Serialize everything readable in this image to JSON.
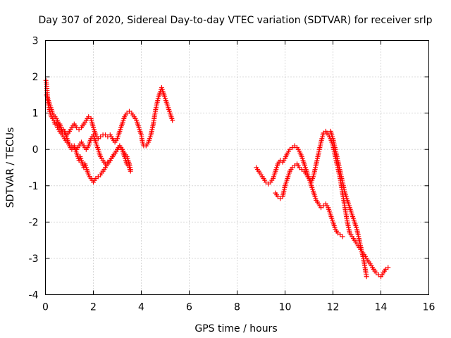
{
  "chart_data": {
    "type": "scatter",
    "title": "Day 307 of 2020, Sidereal Day-to-day VTEC variation (SDTVAR) for receiver srlp",
    "xlabel": "GPS time / hours",
    "ylabel": "SDTVAR / TECUs",
    "xlim": [
      0,
      16
    ],
    "ylim": [
      -4,
      3
    ],
    "xticks": [
      "0",
      "2",
      "4",
      "6",
      "8",
      "10",
      "12",
      "14",
      "16"
    ],
    "yticks": [
      "-4",
      "-3",
      "-2",
      "-1",
      "0",
      "1",
      "2",
      "3"
    ],
    "grid": true,
    "marker": "plus",
    "color": "#ff0000",
    "series": [
      {
        "x": [
          0.02,
          0.05,
          0.08,
          0.1,
          0.13,
          0.16,
          0.2,
          0.25,
          0.3,
          0.35,
          0.4,
          0.45,
          0.5,
          0.55,
          0.6,
          0.65,
          0.7,
          0.75,
          0.8,
          0.85,
          0.9,
          0.95,
          1.0,
          1.05,
          1.1,
          1.15,
          1.2,
          1.25,
          1.3,
          1.35,
          1.4,
          1.45,
          1.5,
          1.55,
          1.6,
          1.65,
          1.7,
          1.75,
          1.8,
          1.85,
          1.9,
          1.95,
          2.0,
          2.05,
          2.1,
          2.2,
          2.3,
          2.4,
          2.5,
          2.6,
          2.7,
          2.8,
          2.9,
          3.0,
          3.1,
          3.2,
          3.3,
          3.4,
          3.5,
          3.55
        ],
        "y": [
          1.9,
          1.8,
          1.5,
          1.3,
          1.2,
          1.1,
          1.0,
          0.9,
          0.85,
          0.8,
          0.7,
          0.75,
          0.65,
          0.6,
          0.7,
          0.6,
          0.5,
          0.55,
          0.5,
          0.4,
          0.3,
          0.2,
          0.1,
          0.05,
          0.0,
          0.05,
          0.1,
          0.0,
          -0.1,
          -0.2,
          -0.3,
          -0.2,
          -0.3,
          -0.4,
          -0.5,
          -0.4,
          -0.5,
          -0.6,
          -0.7,
          -0.75,
          -0.8,
          -0.85,
          -0.9,
          -0.85,
          -0.8,
          -0.75,
          -0.7,
          -0.6,
          -0.5,
          -0.4,
          -0.3,
          -0.2,
          -0.1,
          0.0,
          0.1,
          0.0,
          -0.2,
          -0.4,
          -0.5,
          -0.6
        ]
      },
      {
        "x": [
          0.05,
          0.1,
          0.2,
          0.3,
          0.4,
          0.5,
          0.6,
          0.7,
          0.8,
          0.9,
          1.0,
          1.1,
          1.2,
          1.3,
          1.4,
          1.5,
          1.6,
          1.7,
          1.8,
          1.9,
          2.0,
          2.1,
          2.2,
          2.3,
          2.4,
          2.5,
          2.6,
          2.7,
          2.8,
          2.9,
          3.0,
          3.1,
          3.2,
          3.3,
          3.4,
          3.5,
          3.6,
          3.7,
          3.8,
          3.9,
          4.0,
          4.05,
          4.1,
          4.2,
          4.3,
          4.4,
          4.5,
          4.6,
          4.7,
          4.8,
          4.85,
          4.9,
          5.0,
          5.1,
          5.2,
          5.3
        ],
        "y": [
          1.5,
          1.4,
          1.2,
          1.0,
          0.9,
          0.8,
          0.6,
          0.5,
          0.45,
          0.4,
          0.5,
          0.6,
          0.7,
          0.6,
          0.55,
          0.6,
          0.7,
          0.8,
          0.9,
          0.85,
          0.6,
          0.4,
          0.3,
          0.35,
          0.4,
          0.4,
          0.35,
          0.4,
          0.3,
          0.2,
          0.3,
          0.5,
          0.7,
          0.9,
          1.0,
          1.05,
          1.0,
          0.9,
          0.8,
          0.6,
          0.4,
          0.2,
          0.1,
          0.1,
          0.2,
          0.4,
          0.7,
          1.1,
          1.4,
          1.6,
          1.7,
          1.6,
          1.4,
          1.2,
          1.0,
          0.8
        ]
      },
      {
        "x": [
          0.5,
          0.6,
          0.7,
          0.8,
          0.9,
          1.0,
          1.1,
          1.2,
          1.3,
          1.4,
          1.5,
          1.6,
          1.7,
          1.8,
          1.9,
          2.0,
          2.1,
          2.2,
          2.3,
          2.4,
          2.5,
          2.6,
          2.7,
          2.8,
          2.9,
          3.0,
          3.1,
          3.2,
          3.3,
          3.4,
          3.5,
          3.55
        ],
        "y": [
          0.6,
          0.5,
          0.4,
          0.3,
          0.2,
          0.15,
          0.1,
          0.05,
          0.0,
          0.1,
          0.2,
          0.1,
          0.0,
          0.1,
          0.3,
          0.4,
          0.2,
          0.0,
          -0.2,
          -0.3,
          -0.4,
          -0.35,
          -0.3,
          -0.2,
          -0.1,
          0.0,
          0.1,
          0.0,
          -0.1,
          -0.2,
          -0.4,
          -0.55
        ]
      },
      {
        "x": [
          8.8,
          8.9,
          9.0,
          9.1,
          9.2,
          9.3,
          9.4,
          9.5,
          9.6,
          9.7,
          9.8,
          9.9,
          10.0,
          10.1,
          10.2,
          10.3,
          10.4,
          10.5,
          10.6,
          10.7,
          10.8,
          10.9,
          11.0,
          11.1,
          11.2,
          11.3,
          11.4,
          11.5,
          11.6,
          11.7,
          11.8,
          11.9,
          12.0,
          12.1,
          12.2,
          12.3,
          12.4,
          12.5,
          12.6,
          12.7,
          12.8,
          12.9,
          13.0,
          13.1,
          13.2,
          13.3,
          13.4,
          13.5,
          13.6,
          13.7,
          13.8,
          13.9,
          14.0,
          14.1,
          14.2,
          14.3
        ],
        "y": [
          -0.5,
          -0.6,
          -0.7,
          -0.8,
          -0.9,
          -0.95,
          -0.9,
          -0.8,
          -0.6,
          -0.4,
          -0.3,
          -0.35,
          -0.25,
          -0.1,
          0.0,
          0.05,
          0.1,
          0.05,
          -0.05,
          -0.2,
          -0.4,
          -0.6,
          -0.8,
          -0.9,
          -0.7,
          -0.4,
          -0.1,
          0.2,
          0.45,
          0.5,
          0.4,
          0.3,
          0.1,
          -0.2,
          -0.5,
          -0.8,
          -1.2,
          -1.6,
          -2.0,
          -2.3,
          -2.4,
          -2.5,
          -2.6,
          -2.7,
          -2.8,
          -2.9,
          -3.0,
          -3.1,
          -3.2,
          -3.3,
          -3.4,
          -3.45,
          -3.5,
          -3.4,
          -3.3,
          -3.25
        ]
      },
      {
        "x": [
          9.6,
          9.7,
          9.8,
          9.9,
          10.0,
          10.1,
          10.2,
          10.3,
          10.4,
          10.5,
          10.6,
          10.7,
          10.8,
          10.9,
          11.0,
          11.1,
          11.2,
          11.3,
          11.4,
          11.5,
          11.6,
          11.7,
          11.8,
          11.9,
          12.0,
          12.1,
          12.2,
          12.3,
          12.4
        ],
        "y": [
          -1.2,
          -1.3,
          -1.35,
          -1.3,
          -1.0,
          -0.8,
          -0.6,
          -0.5,
          -0.45,
          -0.4,
          -0.5,
          -0.55,
          -0.6,
          -0.7,
          -0.8,
          -1.0,
          -1.2,
          -1.4,
          -1.5,
          -1.6,
          -1.55,
          -1.5,
          -1.6,
          -1.8,
          -2.0,
          -2.2,
          -2.3,
          -2.35,
          -2.4
        ]
      },
      {
        "x": [
          11.9,
          12.0,
          12.1,
          12.2,
          12.3,
          12.4,
          12.5,
          12.6,
          12.7,
          12.8,
          12.9,
          13.0,
          13.1,
          13.2,
          13.3,
          13.35,
          13.4
        ],
        "y": [
          0.5,
          0.3,
          0.0,
          -0.3,
          -0.6,
          -0.9,
          -1.2,
          -1.4,
          -1.6,
          -1.8,
          -2.0,
          -2.2,
          -2.5,
          -2.8,
          -3.1,
          -3.3,
          -3.5
        ]
      }
    ]
  }
}
